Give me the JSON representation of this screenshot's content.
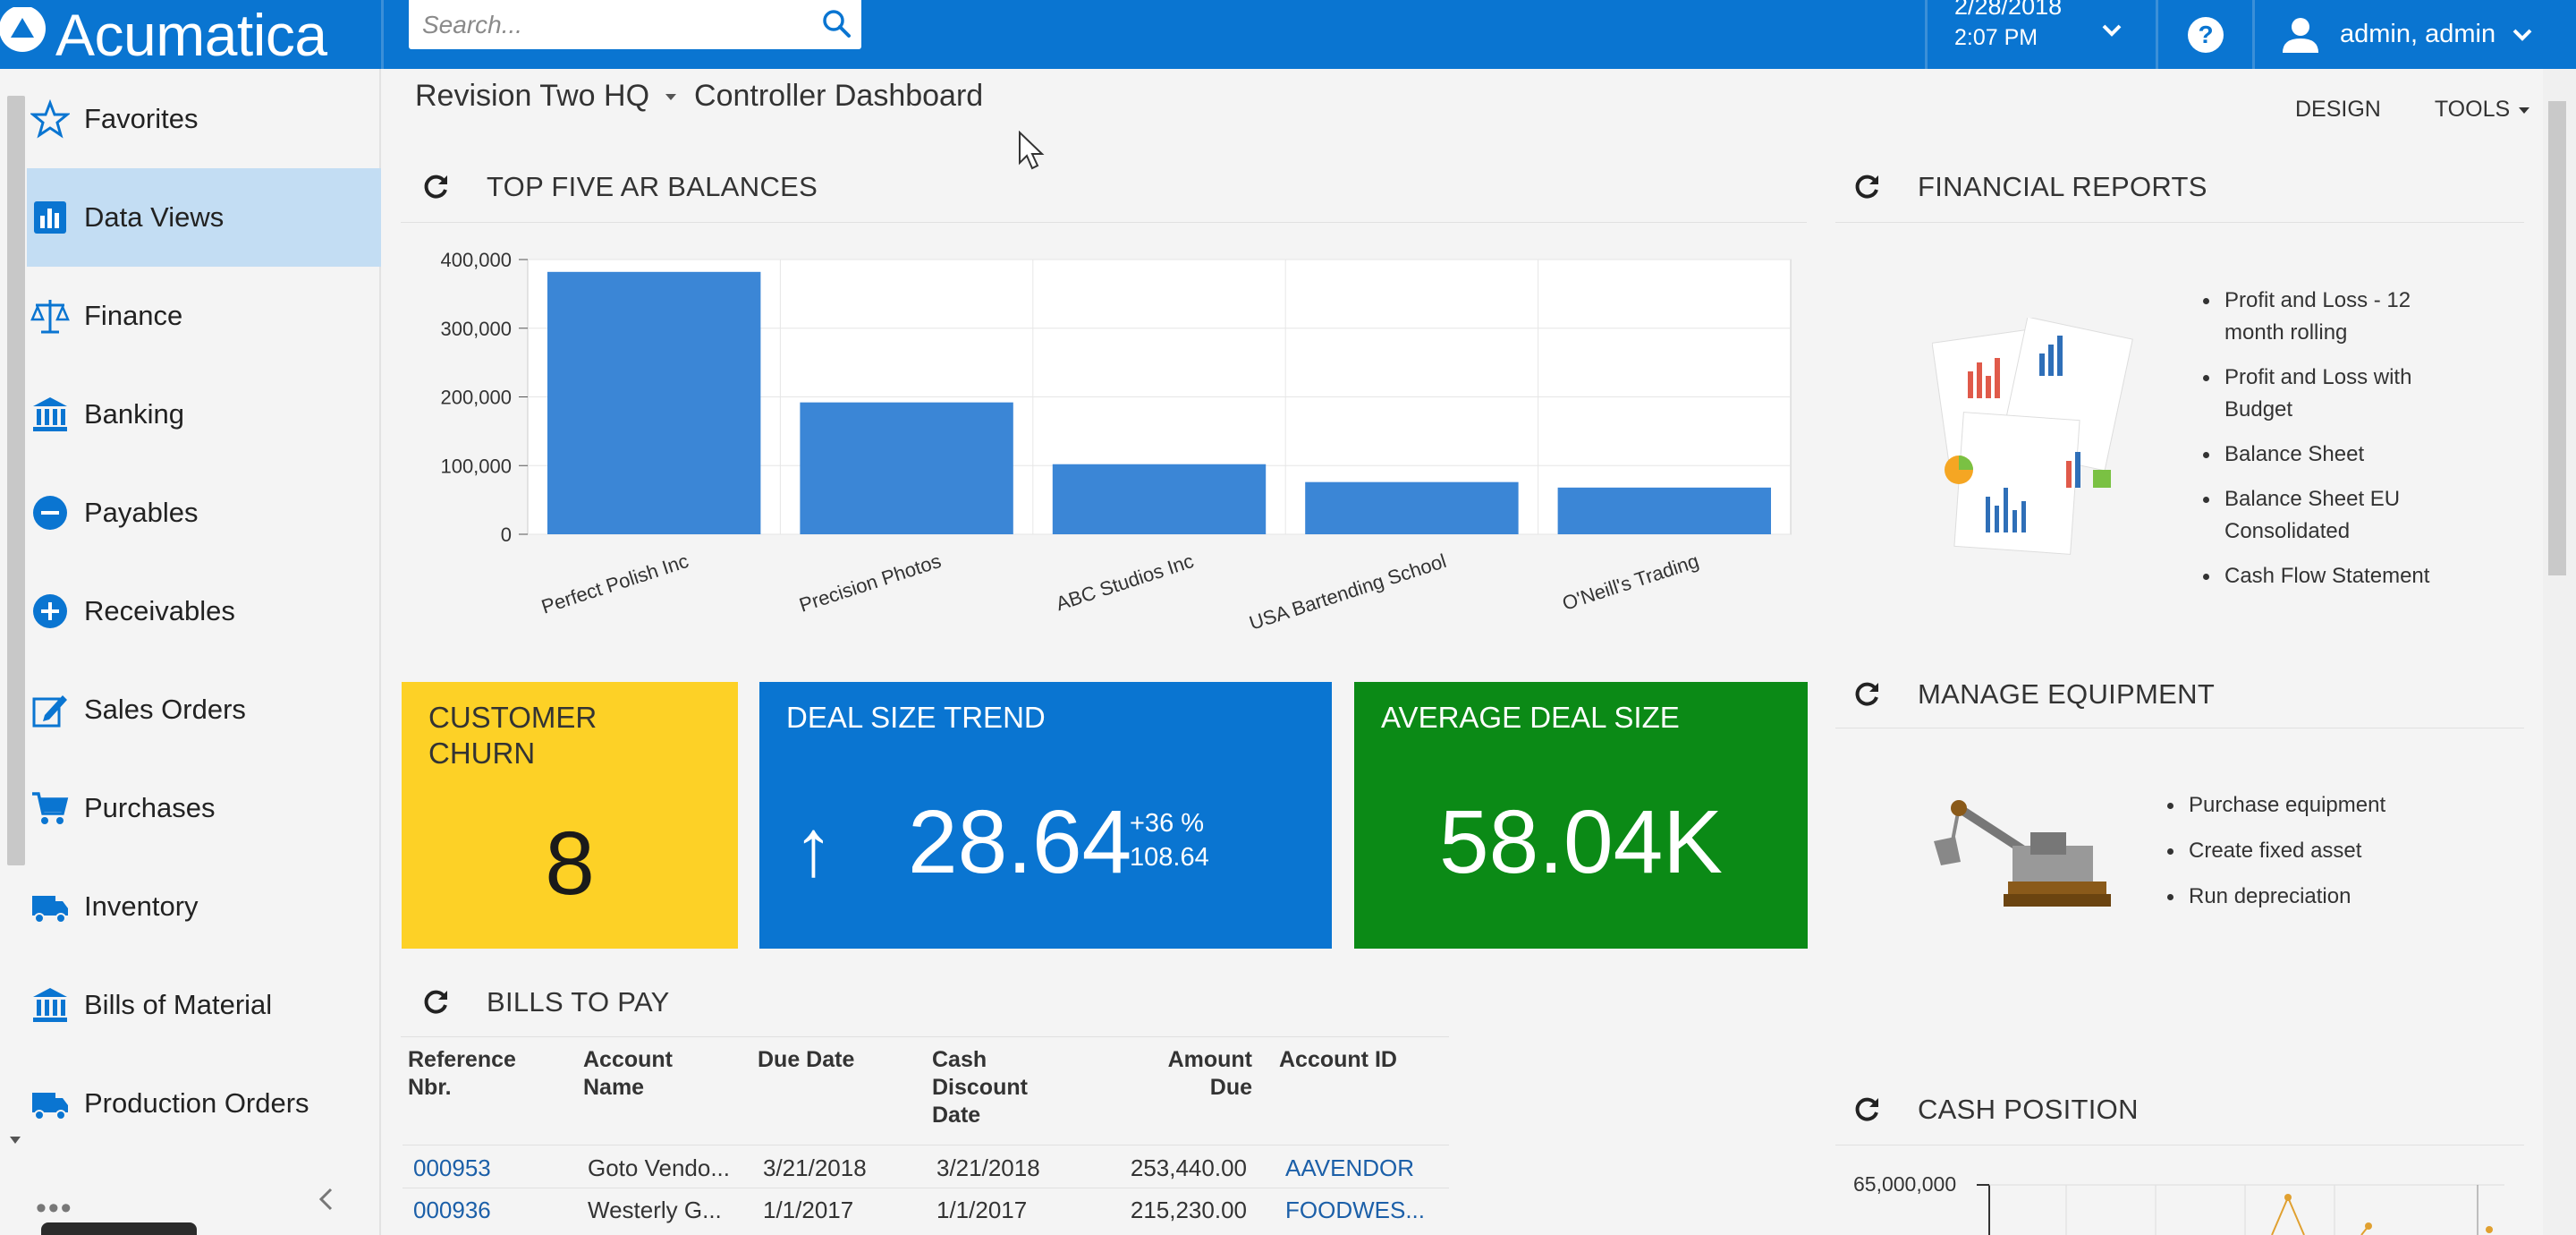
{
  "app": {
    "brand": "Acumatica"
  },
  "search": {
    "placeholder": "Search..."
  },
  "header": {
    "date": "2/28/2018",
    "time": "2:07 PM",
    "user": "admin, admin"
  },
  "sidebar": {
    "items": [
      {
        "label": "Favorites",
        "icon": "star-icon"
      },
      {
        "label": "Data Views",
        "icon": "bar-chart-icon",
        "active": true
      },
      {
        "label": "Finance",
        "icon": "scales-icon"
      },
      {
        "label": "Banking",
        "icon": "bank-icon"
      },
      {
        "label": "Payables",
        "icon": "minus-circle-icon"
      },
      {
        "label": "Receivables",
        "icon": "plus-circle-icon"
      },
      {
        "label": "Sales Orders",
        "icon": "edit-icon"
      },
      {
        "label": "Purchases",
        "icon": "cart-icon"
      },
      {
        "label": "Inventory",
        "icon": "truck-icon"
      },
      {
        "label": "Bills of Material",
        "icon": "bank-icon"
      },
      {
        "label": "Production Orders",
        "icon": "truck-icon"
      }
    ],
    "more": "•••"
  },
  "breadcrumb": {
    "company": "Revision Two HQ",
    "page": "Controller Dashboard"
  },
  "actions": {
    "design": "DESIGN",
    "tools": "TOOLS"
  },
  "widgets": {
    "ar_title": "TOP FIVE AR BALANCES",
    "financial_title": "FINANCIAL REPORTS",
    "equipment_title": "MANAGE EQUIPMENT",
    "bills_title": "BILLS TO PAY",
    "cash_title": "CASH POSITION"
  },
  "chart_data": {
    "type": "bar",
    "categories": [
      "Perfect Polish Inc",
      "Precision Photos",
      "ABC Studios Inc",
      "USA Bartending School",
      "O'Neill's Trading"
    ],
    "values": [
      382000,
      192000,
      102000,
      76000,
      68000
    ],
    "ylim": [
      0,
      400000
    ],
    "yticks": [
      "0",
      "100,000",
      "200,000",
      "300,000",
      "400,000"
    ],
    "ytick_values": [
      0,
      100000,
      200000,
      300000,
      400000
    ],
    "grid": true,
    "color": "#3b86d6"
  },
  "tiles": {
    "churn": {
      "title": "CUSTOMER CHURN",
      "value": "8"
    },
    "trend": {
      "title": "DEAL SIZE TREND",
      "arrow": "↑",
      "value": "28.64",
      "delta_pct": "+36 %",
      "prev": "108.64"
    },
    "avg": {
      "title": "AVERAGE DEAL SIZE",
      "value": "58.04K"
    }
  },
  "financial_reports": [
    "Profit and Loss - 12 month rolling",
    "Profit and Loss with Budget",
    "Balance Sheet",
    "Balance Sheet EU Consolidated",
    "Cash Flow Statement"
  ],
  "equipment": [
    "Purchase equipment",
    "Create fixed asset",
    "Run depreciation"
  ],
  "bills": {
    "headers": {
      "ref": "Reference Nbr.",
      "acct_name": "Account Name",
      "due": "Due Date",
      "cash_disc": "Cash Discount Date",
      "amount": "Amount Due",
      "acct_id": "Account ID"
    },
    "rows": [
      {
        "ref": "000953",
        "acct_name": "Goto Vendo...",
        "due": "3/21/2018",
        "cash_disc": "3/21/2018",
        "amount": "253,440.00",
        "acct_id": "AAVENDOR"
      },
      {
        "ref": "000936",
        "acct_name": "Westerly G...",
        "due": "1/1/2017",
        "cash_disc": "1/1/2017",
        "amount": "215,230.00",
        "acct_id": "FOODWES..."
      }
    ]
  },
  "cash_position": {
    "ytick": "65,000,000"
  },
  "colors": {
    "brand": "#0a75d1",
    "yellow": "#fdd126",
    "green": "#0b8a16",
    "bar": "#3b86d6",
    "link": "#1b5fa8"
  }
}
